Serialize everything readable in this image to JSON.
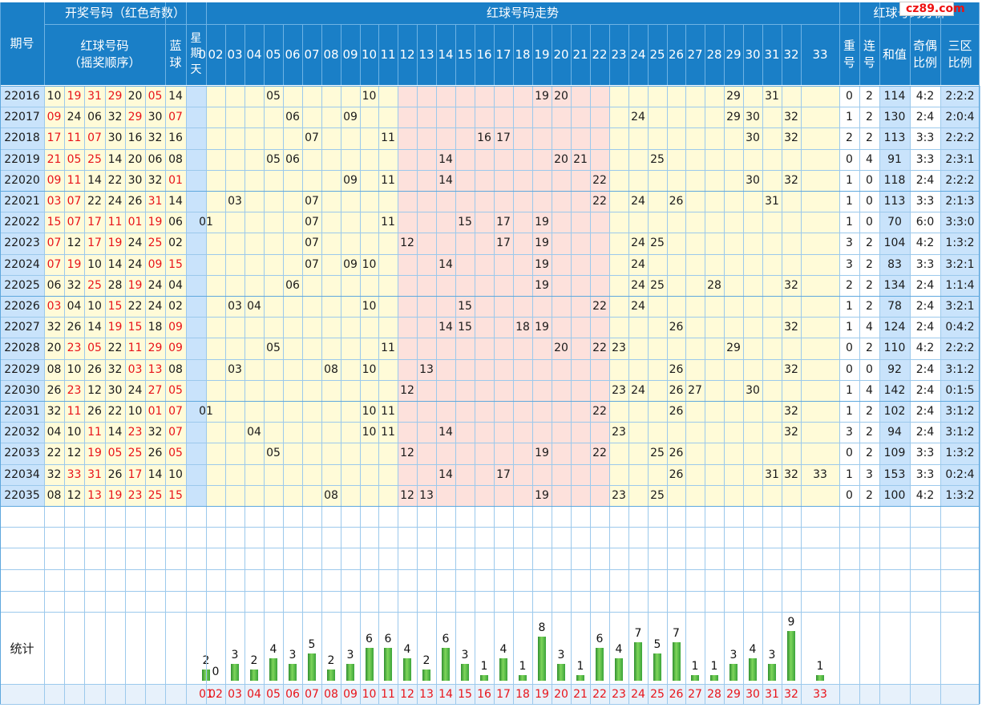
{
  "headers": {
    "period": "期号",
    "draw_group": "开奖号码（红色奇数）",
    "red_order": "红球号码\n（摇奖顺序）",
    "blue": "蓝\n球",
    "weekday": "星\n期\n天",
    "trend": "红球号码走势",
    "analysis": "红球号码分析",
    "repeat": "重\n号",
    "consecutive": "连\n号",
    "sum": "和值",
    "odd_even": "奇偶\n比例",
    "three_zone": "三区\n比例",
    "stats": "统计"
  },
  "watermark": "cz89.com",
  "colors": {
    "header_blue": "#1a7fc7",
    "odd_red": "#e8141a",
    "trend_yellow": "#fffbd8",
    "trend_pink": "#fde1dc",
    "side_blue": "#c9e3fb",
    "grid_blue": "#9cc9ec"
  },
  "numbers": [
    "01",
    "02",
    "03",
    "04",
    "05",
    "06",
    "07",
    "08",
    "09",
    "10",
    "11",
    "12",
    "13",
    "14",
    "15",
    "16",
    "17",
    "18",
    "19",
    "20",
    "21",
    "22",
    "23",
    "24",
    "25",
    "26",
    "27",
    "28",
    "29",
    "30",
    "31",
    "32",
    "33"
  ],
  "chart_data": {
    "type": "table",
    "draws": [
      {
        "period": "22016",
        "reds": [
          "10",
          "19",
          "31",
          "29",
          "20",
          "05"
        ],
        "blue": "14",
        "repeat": "0",
        "consecutive": "2",
        "sum": "114",
        "odd_even": "4:2",
        "zones": "2:2:2"
      },
      {
        "period": "22017",
        "reds": [
          "09",
          "24",
          "06",
          "32",
          "29",
          "30"
        ],
        "blue": "07",
        "repeat": "1",
        "consecutive": "2",
        "sum": "130",
        "odd_even": "2:4",
        "zones": "2:0:4"
      },
      {
        "period": "22018",
        "reds": [
          "17",
          "11",
          "07",
          "30",
          "16",
          "32"
        ],
        "blue": "16",
        "repeat": "2",
        "consecutive": "2",
        "sum": "113",
        "odd_even": "3:3",
        "zones": "2:2:2"
      },
      {
        "period": "22019",
        "reds": [
          "21",
          "05",
          "25",
          "14",
          "20",
          "06"
        ],
        "blue": "08",
        "repeat": "0",
        "consecutive": "4",
        "sum": "91",
        "odd_even": "3:3",
        "zones": "2:3:1"
      },
      {
        "period": "22020",
        "reds": [
          "09",
          "11",
          "14",
          "22",
          "30",
          "32"
        ],
        "blue": "01",
        "repeat": "1",
        "consecutive": "0",
        "sum": "118",
        "odd_even": "2:4",
        "zones": "2:2:2"
      },
      {
        "period": "22021",
        "reds": [
          "03",
          "07",
          "22",
          "24",
          "26",
          "31"
        ],
        "blue": "14",
        "repeat": "1",
        "consecutive": "0",
        "sum": "113",
        "odd_even": "3:3",
        "zones": "2:1:3"
      },
      {
        "period": "22022",
        "reds": [
          "15",
          "07",
          "17",
          "11",
          "01",
          "19"
        ],
        "blue": "06",
        "repeat": "1",
        "consecutive": "0",
        "sum": "70",
        "odd_even": "6:0",
        "zones": "3:3:0"
      },
      {
        "period": "22023",
        "reds": [
          "07",
          "12",
          "17",
          "19",
          "24",
          "25"
        ],
        "blue": "02",
        "repeat": "3",
        "consecutive": "2",
        "sum": "104",
        "odd_even": "4:2",
        "zones": "1:3:2"
      },
      {
        "period": "22024",
        "reds": [
          "07",
          "19",
          "10",
          "14",
          "24",
          "09"
        ],
        "blue": "15",
        "repeat": "3",
        "consecutive": "2",
        "sum": "83",
        "odd_even": "3:3",
        "zones": "3:2:1"
      },
      {
        "period": "22025",
        "reds": [
          "06",
          "32",
          "25",
          "28",
          "19",
          "24"
        ],
        "blue": "04",
        "repeat": "2",
        "consecutive": "2",
        "sum": "134",
        "odd_even": "2:4",
        "zones": "1:1:4"
      },
      {
        "period": "22026",
        "reds": [
          "03",
          "04",
          "10",
          "15",
          "22",
          "24"
        ],
        "blue": "02",
        "repeat": "1",
        "consecutive": "2",
        "sum": "78",
        "odd_even": "2:4",
        "zones": "3:2:1"
      },
      {
        "period": "22027",
        "reds": [
          "32",
          "26",
          "14",
          "19",
          "15",
          "18"
        ],
        "blue": "09",
        "repeat": "1",
        "consecutive": "4",
        "sum": "124",
        "odd_even": "2:4",
        "zones": "0:4:2"
      },
      {
        "period": "22028",
        "reds": [
          "20",
          "23",
          "05",
          "22",
          "11",
          "29"
        ],
        "blue": "09",
        "repeat": "0",
        "consecutive": "2",
        "sum": "110",
        "odd_even": "4:2",
        "zones": "2:2:2"
      },
      {
        "period": "22029",
        "reds": [
          "08",
          "10",
          "26",
          "32",
          "03",
          "13"
        ],
        "blue": "08",
        "repeat": "0",
        "consecutive": "0",
        "sum": "92",
        "odd_even": "2:4",
        "zones": "3:1:2"
      },
      {
        "period": "22030",
        "reds": [
          "26",
          "23",
          "12",
          "30",
          "24",
          "27"
        ],
        "blue": "05",
        "repeat": "1",
        "consecutive": "4",
        "sum": "142",
        "odd_even": "2:4",
        "zones": "0:1:5"
      },
      {
        "period": "22031",
        "reds": [
          "32",
          "11",
          "26",
          "22",
          "10",
          "01"
        ],
        "blue": "07",
        "repeat": "1",
        "consecutive": "2",
        "sum": "102",
        "odd_even": "2:4",
        "zones": "3:1:2"
      },
      {
        "period": "22032",
        "reds": [
          "04",
          "10",
          "11",
          "14",
          "23",
          "32"
        ],
        "blue": "07",
        "repeat": "3",
        "consecutive": "2",
        "sum": "94",
        "odd_even": "2:4",
        "zones": "3:1:2"
      },
      {
        "period": "22033",
        "reds": [
          "22",
          "12",
          "19",
          "05",
          "25",
          "26"
        ],
        "blue": "05",
        "repeat": "0",
        "consecutive": "2",
        "sum": "109",
        "odd_even": "3:3",
        "zones": "1:3:2"
      },
      {
        "period": "22034",
        "reds": [
          "32",
          "33",
          "31",
          "26",
          "17",
          "14"
        ],
        "blue": "10",
        "repeat": "1",
        "consecutive": "3",
        "sum": "153",
        "odd_even": "3:3",
        "zones": "0:2:4"
      },
      {
        "period": "22035",
        "reds": [
          "08",
          "12",
          "13",
          "19",
          "23",
          "25"
        ],
        "blue": "15",
        "repeat": "0",
        "consecutive": "2",
        "sum": "100",
        "odd_even": "4:2",
        "zones": "1:3:2"
      }
    ],
    "frequency": [
      2,
      0,
      3,
      2,
      4,
      3,
      5,
      2,
      3,
      6,
      6,
      4,
      2,
      6,
      3,
      1,
      4,
      1,
      8,
      3,
      1,
      6,
      4,
      7,
      5,
      7,
      1,
      1,
      3,
      4,
      3,
      9,
      1
    ],
    "frequency_max": 9
  }
}
